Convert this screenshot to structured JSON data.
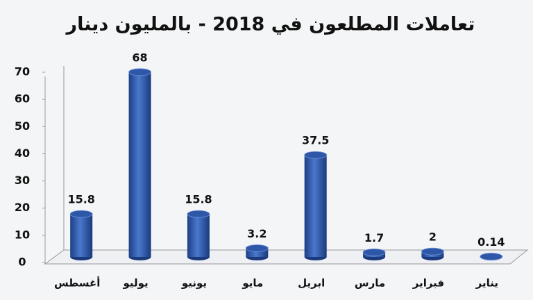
{
  "chart_data": {
    "type": "bar",
    "title": "تعاملات المطلعون في 2018 - بالمليون دينار",
    "categories": [
      "أغسطس",
      "يوليو",
      "يونيو",
      "مايو",
      "ابريل",
      "مارس",
      "فبراير",
      "يناير"
    ],
    "values": [
      15.8,
      68,
      15.8,
      3.2,
      37.5,
      1.7,
      2,
      0.14
    ],
    "color": "#2f57a8",
    "ylim": [
      0,
      70
    ],
    "yticks": [
      0,
      10,
      20,
      30,
      40,
      50,
      60,
      70
    ]
  }
}
